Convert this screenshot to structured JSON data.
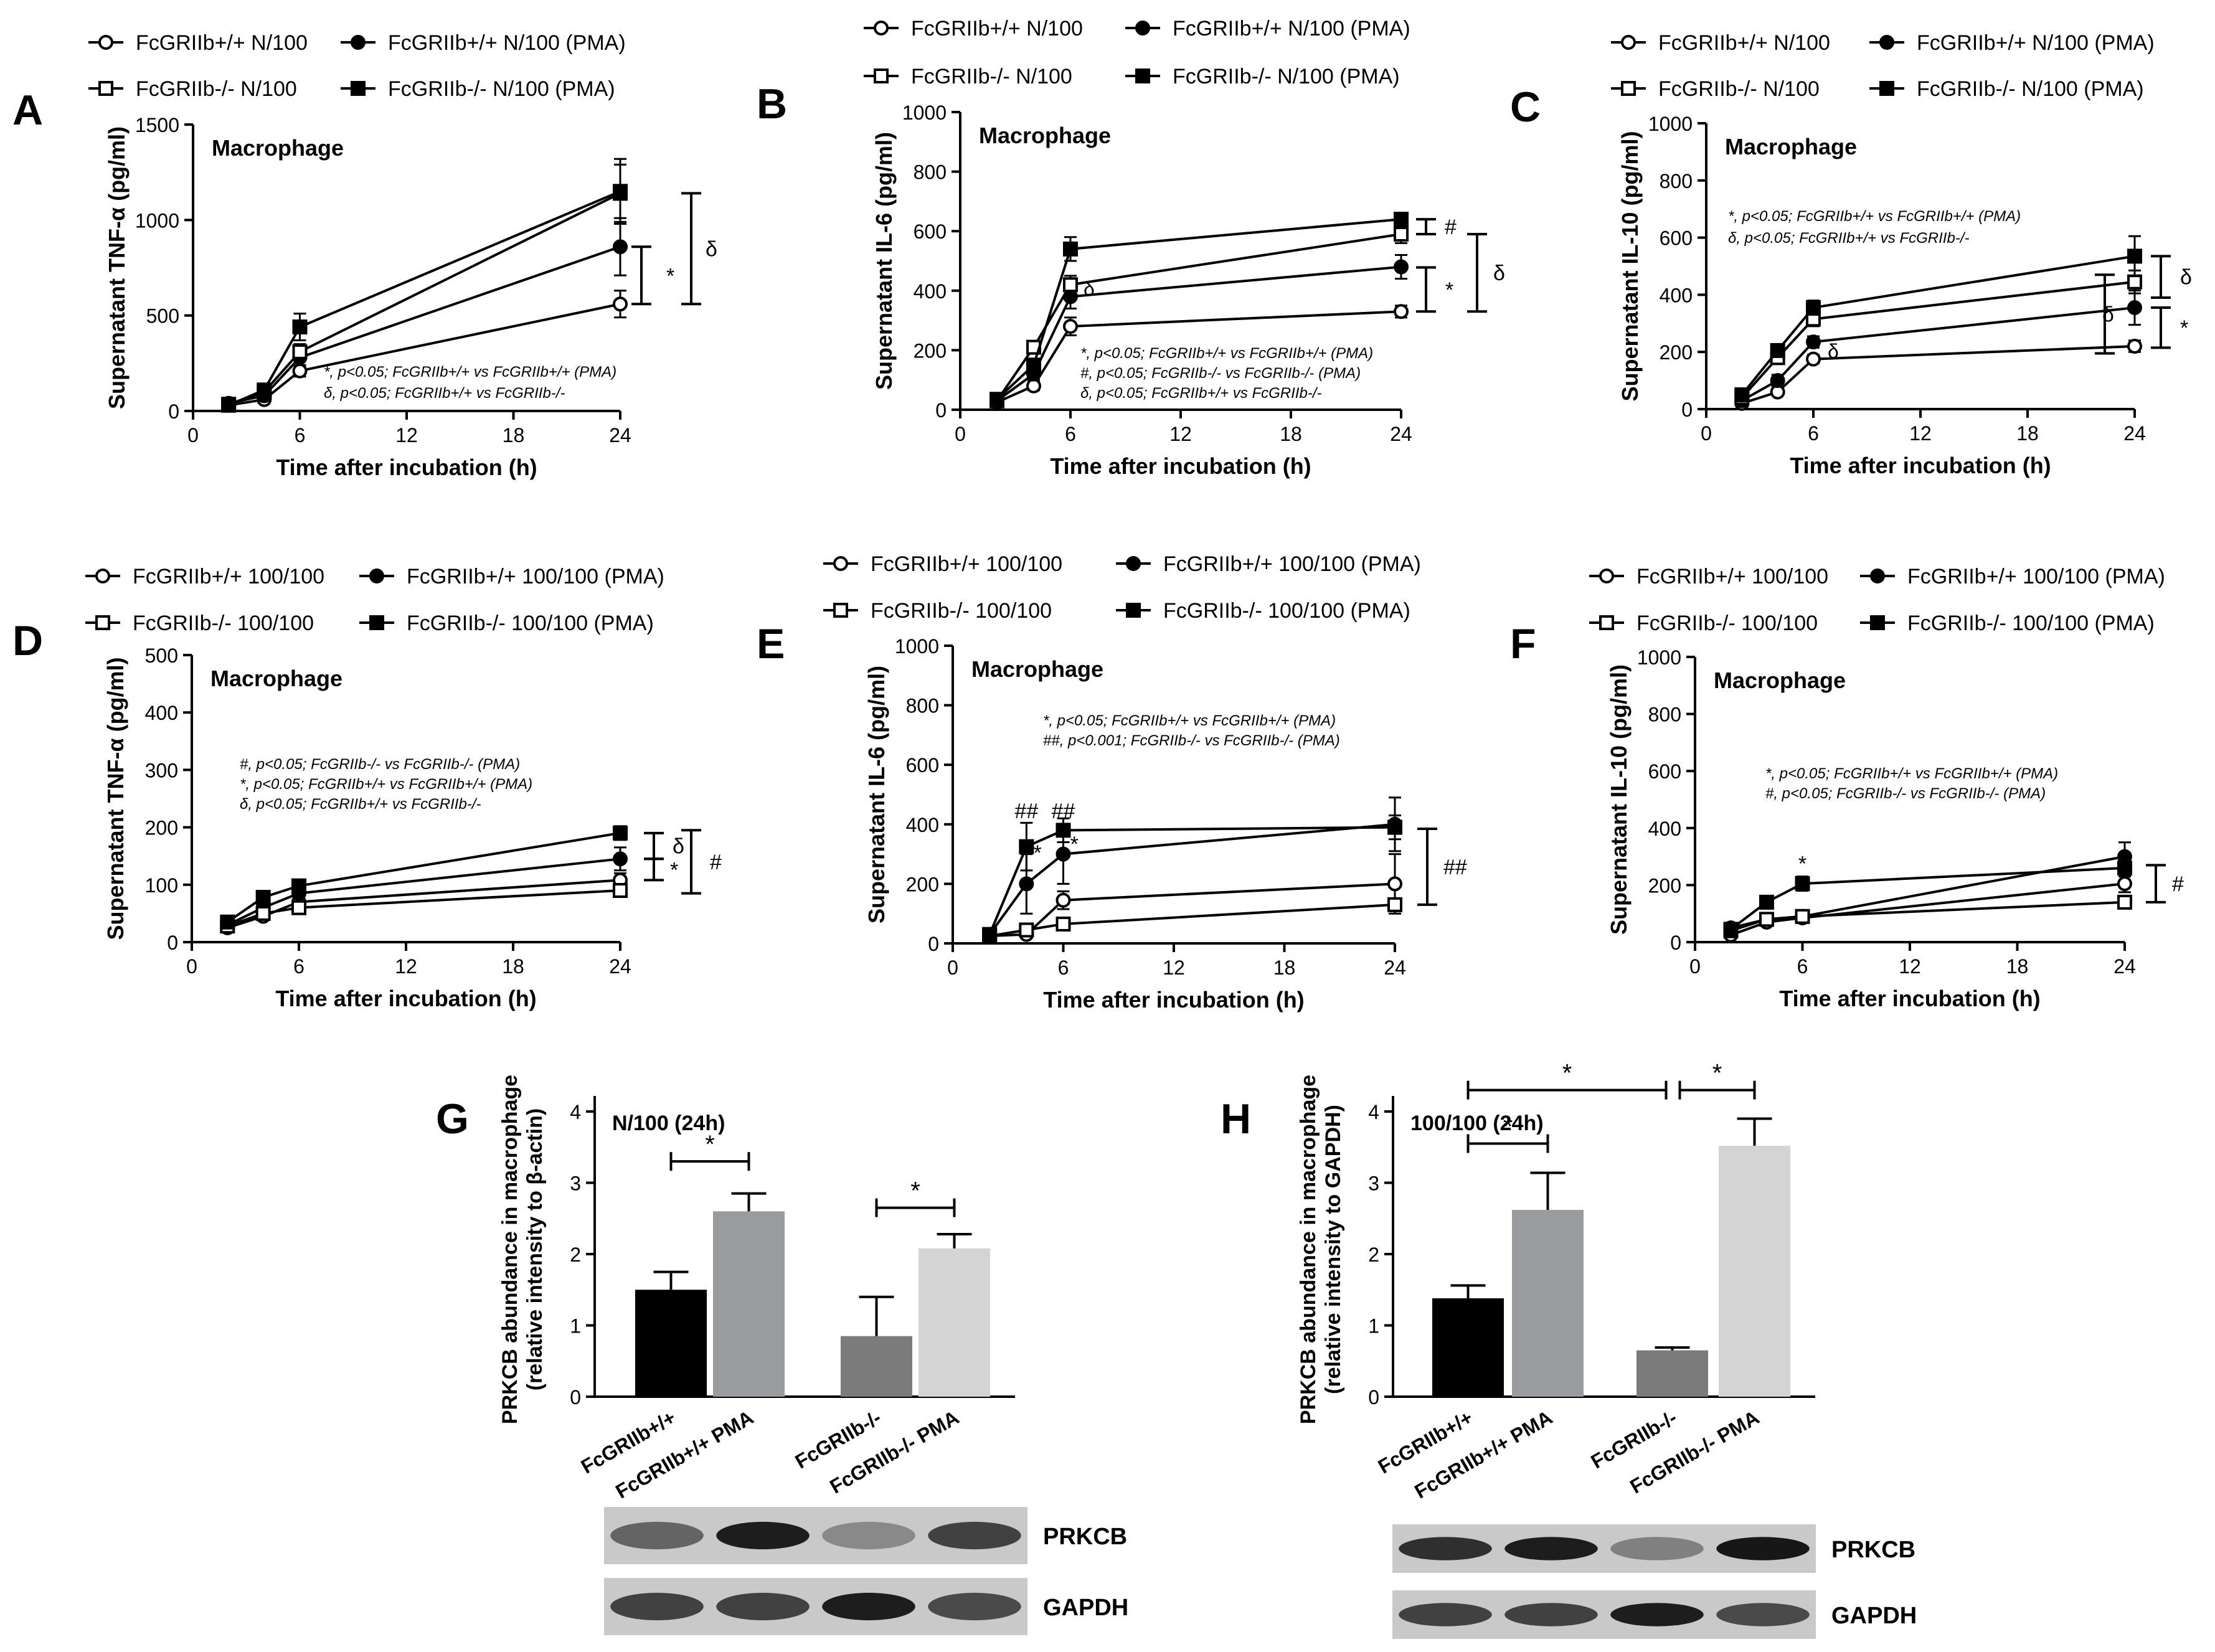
{
  "chart_data": [
    {
      "panel": "A",
      "type": "line",
      "annotation": "Macrophage",
      "xlabel": "Time after incubation (h)",
      "ylabel": "Supernatant TNF-α (pg/ml)",
      "xlim": [
        0,
        24
      ],
      "xticks": [
        0,
        6,
        12,
        18,
        24
      ],
      "ylim": [
        0,
        1500
      ],
      "yticks": [
        0,
        500,
        1000,
        1500
      ],
      "legend": [
        "FcGRIIb+/+ N/100",
        "FcGRIIb+/+ N/100 (PMA)",
        "FcGRIIb-/- N/100",
        "FcGRIIb-/- N/100 (PMA)"
      ],
      "x": [
        2,
        4,
        6,
        24
      ],
      "series": [
        {
          "name": "FcGRIIb+/+ N/100",
          "values": [
            30,
            60,
            210,
            560
          ],
          "err": [
            10,
            15,
            30,
            70
          ]
        },
        {
          "name": "FcGRIIb+/+ N/100 (PMA)",
          "values": [
            40,
            80,
            280,
            860
          ],
          "err": [
            10,
            20,
            40,
            150
          ]
        },
        {
          "name": "FcGRIIb-/- N/100",
          "values": [
            35,
            100,
            310,
            1140
          ],
          "err": [
            10,
            20,
            40,
            150
          ]
        },
        {
          "name": "FcGRIIb-/- N/100 (PMA)",
          "values": [
            30,
            110,
            440,
            1150
          ],
          "err": [
            10,
            20,
            70,
            170
          ]
        }
      ],
      "sig_labels": [
        "*",
        "δ"
      ],
      "notes": [
        "*, p<0.05; FcGRIIb+/+ vs FcGRIIb+/+ (PMA)",
        "δ, p<0.05; FcGRIIb+/+ vs FcGRIIb-/-"
      ]
    },
    {
      "panel": "B",
      "type": "line",
      "annotation": "Macrophage",
      "xlabel": "Time after incubation (h)",
      "ylabel": "Supernatant IL-6 (pg/ml)",
      "xlim": [
        0,
        24
      ],
      "xticks": [
        0,
        6,
        12,
        18,
        24
      ],
      "ylim": [
        0,
        1000
      ],
      "yticks": [
        0,
        200,
        400,
        600,
        800,
        1000
      ],
      "legend": [
        "FcGRIIb+/+ N/100",
        "FcGRIIb+/+ N/100 (PMA)",
        "FcGRIIb-/- N/100",
        "FcGRIIb-/- N/100 (PMA)"
      ],
      "x": [
        2,
        4,
        6,
        24
      ],
      "series": [
        {
          "name": "FcGRIIb+/+ N/100",
          "values": [
            25,
            80,
            280,
            330
          ],
          "err": [
            5,
            15,
            30,
            20
          ]
        },
        {
          "name": "FcGRIIb+/+ N/100 (PMA)",
          "values": [
            30,
            120,
            380,
            480
          ],
          "err": [
            8,
            20,
            40,
            40
          ]
        },
        {
          "name": "FcGRIIb-/- N/100",
          "values": [
            30,
            210,
            420,
            590
          ],
          "err": [
            8,
            20,
            30,
            30
          ]
        },
        {
          "name": "FcGRIIb-/- N/100 (PMA)",
          "values": [
            35,
            150,
            540,
            640
          ],
          "err": [
            8,
            20,
            40,
            20
          ]
        }
      ],
      "sig_labels": [
        "#",
        "*",
        "δ",
        "δ"
      ],
      "notes": [
        "*, p<0.05; FcGRIIb+/+ vs FcGRIIb+/+ (PMA)",
        "#, p<0.05; FcGRIIb-/- vs FcGRIIb-/- (PMA)",
        "δ, p<0.05; FcGRIIb+/+ vs FcGRIIb-/-"
      ]
    },
    {
      "panel": "C",
      "type": "line",
      "annotation": "Macrophage",
      "xlabel": "Time after incubation (h)",
      "ylabel": "Supernatant IL-10 (pg/ml)",
      "xlim": [
        0,
        24
      ],
      "xticks": [
        0,
        6,
        12,
        18,
        24
      ],
      "ylim": [
        0,
        1000
      ],
      "yticks": [
        0,
        200,
        400,
        600,
        800,
        1000
      ],
      "legend": [
        "FcGRIIb+/+ N/100",
        "FcGRIIb+/+ N/100 (PMA)",
        "FcGRIIb-/- N/100",
        "FcGRIIb-/- N/100 (PMA)"
      ],
      "x": [
        2,
        4,
        6,
        24
      ],
      "series": [
        {
          "name": "FcGRIIb+/+ N/100",
          "values": [
            20,
            60,
            175,
            220
          ],
          "err": [
            5,
            10,
            15,
            20
          ]
        },
        {
          "name": "FcGRIIb+/+ N/100 (PMA)",
          "values": [
            30,
            100,
            235,
            355
          ],
          "err": [
            8,
            20,
            20,
            60
          ]
        },
        {
          "name": "FcGRIIb-/- N/100",
          "values": [
            40,
            180,
            315,
            445
          ],
          "err": [
            10,
            20,
            25,
            40
          ]
        },
        {
          "name": "FcGRIIb-/- N/100 (PMA)",
          "values": [
            50,
            205,
            355,
            535
          ],
          "err": [
            10,
            20,
            25,
            70
          ]
        }
      ],
      "sig_labels": [
        "δ",
        "*",
        "δ",
        "δ"
      ],
      "notes": [
        "*, p<0.05; FcGRIIb+/+ vs FcGRIIb+/+ (PMA)",
        "δ, p<0.05; FcGRIIb+/+ vs FcGRIIb-/-"
      ]
    },
    {
      "panel": "D",
      "type": "line",
      "annotation": "Macrophage",
      "xlabel": "Time after incubation (h)",
      "ylabel": "Supernatant TNF-α (pg/ml)",
      "xlim": [
        0,
        24
      ],
      "xticks": [
        0,
        6,
        12,
        18,
        24
      ],
      "ylim": [
        0,
        500
      ],
      "yticks": [
        0,
        100,
        200,
        300,
        400,
        500
      ],
      "legend": [
        "FcGRIIb+/+ 100/100",
        "FcGRIIb+/+ 100/100 (PMA)",
        "FcGRIIb-/- 100/100",
        "FcGRIIb-/- 100/100 (PMA)"
      ],
      "x": [
        2,
        4,
        6,
        24
      ],
      "series": [
        {
          "name": "FcGRIIb+/+ 100/100",
          "values": [
            25,
            45,
            70,
            108
          ],
          "err": [
            4,
            6,
            8,
            12
          ]
        },
        {
          "name": "FcGRIIb+/+ 100/100 (PMA)",
          "values": [
            30,
            60,
            85,
            145
          ],
          "err": [
            5,
            8,
            10,
            20
          ]
        },
        {
          "name": "FcGRIIb-/- 100/100",
          "values": [
            28,
            50,
            60,
            90
          ],
          "err": [
            4,
            6,
            8,
            8
          ]
        },
        {
          "name": "FcGRIIb-/- 100/100 (PMA)",
          "values": [
            35,
            78,
            98,
            190
          ],
          "err": [
            5,
            8,
            10,
            12
          ]
        }
      ],
      "sig_labels": [
        "δ",
        "*",
        "#"
      ],
      "notes": [
        "#, p<0.05; FcGRIIb-/- vs FcGRIIb-/- (PMA)",
        "*, p<0.05; FcGRIIb+/+ vs FcGRIIb+/+ (PMA)",
        "δ, p<0.05; FcGRIIb+/+ vs FcGRIIb-/-"
      ]
    },
    {
      "panel": "E",
      "type": "line",
      "annotation": "Macrophage",
      "xlabel": "Time after incubation (h)",
      "ylabel": "Supernatant IL-6 (pg/ml)",
      "xlim": [
        0,
        24
      ],
      "xticks": [
        0,
        6,
        12,
        18,
        24
      ],
      "ylim": [
        0,
        1000
      ],
      "yticks": [
        0,
        200,
        400,
        600,
        800,
        1000
      ],
      "legend": [
        "FcGRIIb+/+ 100/100",
        "FcGRIIb+/+ 100/100 (PMA)",
        "FcGRIIb-/- 100/100",
        "FcGRIIb-/- 100/100 (PMA)"
      ],
      "x": [
        2,
        4,
        6,
        24
      ],
      "series": [
        {
          "name": "FcGRIIb+/+ 100/100",
          "values": [
            25,
            30,
            145,
            200
          ],
          "err": [
            5,
            8,
            30,
            100
          ]
        },
        {
          "name": "FcGRIIb+/+ 100/100 (PMA)",
          "values": [
            30,
            200,
            300,
            400
          ],
          "err": [
            8,
            100,
            100,
            90
          ]
        },
        {
          "name": "FcGRIIb-/- 100/100",
          "values": [
            25,
            45,
            65,
            130
          ],
          "err": [
            5,
            8,
            10,
            20
          ]
        },
        {
          "name": "FcGRIIb-/- 100/100 (PMA)",
          "values": [
            30,
            325,
            380,
            390
          ],
          "err": [
            8,
            80,
            40,
            40
          ]
        }
      ],
      "sig_labels": [
        "##",
        "##",
        "*",
        "*",
        "##"
      ],
      "notes": [
        "*, p<0.05; FcGRIIb+/+ vs FcGRIIb+/+ (PMA)",
        "##, p<0.001; FcGRIIb-/- vs FcGRIIb-/- (PMA)"
      ]
    },
    {
      "panel": "F",
      "type": "line",
      "annotation": "Macrophage",
      "xlabel": "Time after incubation (h)",
      "ylabel": "Supernatant IL-10 (pg/ml)",
      "xlim": [
        0,
        24
      ],
      "xticks": [
        0,
        6,
        12,
        18,
        24
      ],
      "ylim": [
        0,
        1000
      ],
      "yticks": [
        0,
        200,
        400,
        600,
        800,
        1000
      ],
      "legend": [
        "FcGRIIb+/+ 100/100",
        "FcGRIIb+/+ 100/100 (PMA)",
        "FcGRIIb-/- 100/100",
        "FcGRIIb-/- 100/100 (PMA)"
      ],
      "x": [
        2,
        4,
        6,
        24
      ],
      "series": [
        {
          "name": "FcGRIIb+/+ 100/100",
          "values": [
            25,
            70,
            85,
            205
          ],
          "err": [
            5,
            10,
            10,
            30
          ]
        },
        {
          "name": "FcGRIIb+/+ 100/100 (PMA)",
          "values": [
            50,
            80,
            90,
            300
          ],
          "err": [
            8,
            10,
            10,
            50
          ]
        },
        {
          "name": "FcGRIIb-/- 100/100",
          "values": [
            40,
            80,
            90,
            140
          ],
          "err": [
            5,
            10,
            10,
            15
          ]
        },
        {
          "name": "FcGRIIb-/- 100/100 (PMA)",
          "values": [
            45,
            140,
            205,
            260
          ],
          "err": [
            8,
            15,
            25,
            30
          ]
        }
      ],
      "sig_labels": [
        "*",
        "#"
      ],
      "notes": [
        "*, p<0.05; FcGRIIb+/+ vs FcGRIIb+/+ (PMA)",
        "#, p<0.05; FcGRIIb-/- vs FcGRIIb-/- (PMA)"
      ]
    },
    {
      "panel": "G",
      "type": "bar",
      "annotation": "N/100 (24h)",
      "ylabel": [
        "PRKCB abundance in macrophage",
        "(relative intensity to β-actin)"
      ],
      "ylim": [
        0,
        4
      ],
      "yticks": [
        0,
        1,
        2,
        3,
        4
      ],
      "categories": [
        "FcGRIIb+/+",
        "FcGRIIb+/+ PMA",
        "FcGRIIb-/-",
        "FcGRIIb-/- PMA"
      ],
      "values": [
        1.5,
        2.6,
        0.85,
        2.08
      ],
      "err": [
        0.25,
        0.25,
        0.55,
        0.2
      ],
      "colors": [
        "#000000",
        "#9a9b9e",
        "#7b7b7b",
        "#d4d4d4"
      ],
      "sig_labels": [
        "*",
        "*"
      ],
      "blot_labels": [
        "PRKCB",
        "GAPDH"
      ]
    },
    {
      "panel": "H",
      "type": "bar",
      "annotation": "100/100 (24h)",
      "ylabel": [
        "PRKCB abundance in macrophage",
        "(relative intensity to GAPDH)"
      ],
      "ylim": [
        0,
        4
      ],
      "yticks": [
        0,
        1,
        2,
        3,
        4
      ],
      "categories": [
        "FcGRIIb+/+",
        "FcGRIIb+/+ PMA",
        "FcGRIIb-/-",
        "FcGRIIb-/- PMA"
      ],
      "values": [
        1.38,
        2.62,
        0.65,
        3.52
      ],
      "err": [
        0.18,
        0.52,
        0.04,
        0.38
      ],
      "colors": [
        "#000000",
        "#9a9b9e",
        "#7b7b7b",
        "#d4d4d4"
      ],
      "sig_labels": [
        "*",
        "*",
        "*"
      ],
      "blot_labels": [
        "PRKCB",
        "GAPDH"
      ]
    }
  ]
}
